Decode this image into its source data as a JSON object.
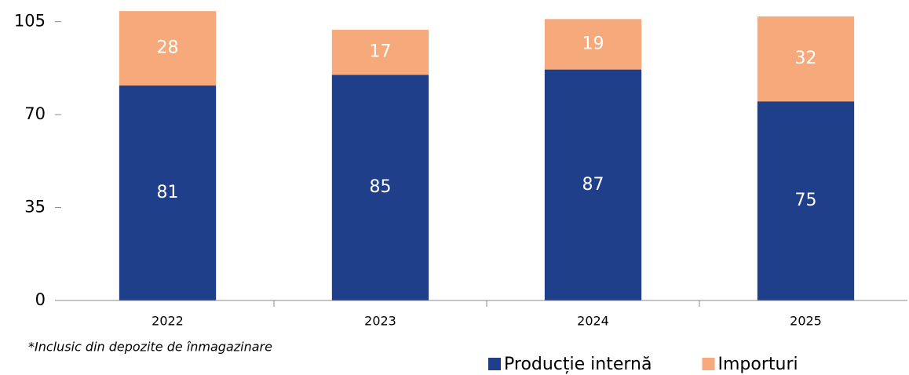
{
  "chart_data": {
    "type": "stacked_bar",
    "categories": [
      "2022",
      "2023",
      "2024",
      "2025"
    ],
    "series": [
      {
        "name": "Producție internă",
        "color": "#203f8a",
        "values": [
          81,
          85,
          87,
          75
        ]
      },
      {
        "name": "Importuri",
        "color": "#f6aa7b",
        "values": [
          28,
          17,
          19,
          32
        ]
      }
    ],
    "ylim": [
      0,
      112
    ],
    "yticks": [
      0,
      35,
      70,
      105
    ],
    "annotation": "*Inclusic din depozite de înmagazinare",
    "legend": "bottom-right"
  }
}
